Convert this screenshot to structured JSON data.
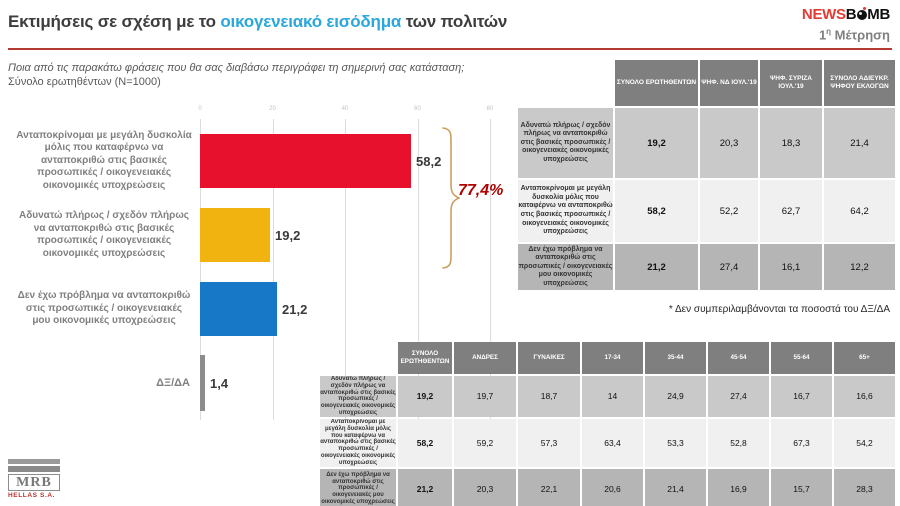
{
  "header": {
    "title_prefix": "Εκτιμήσεις σε σχέση με το ",
    "title_highlight": "οικογενειακό εισόδημα",
    "title_suffix": " των πολιτών",
    "brand_news": "NEWS",
    "brand_b": "B",
    "brand_mb": "MB",
    "measurement_num": "1",
    "measurement_sup": "η",
    "measurement_word": " Μέτρηση"
  },
  "question": {
    "line1": "Ποια από τις παρακάτω φράσεις που θα σας διαβάσω περιγράφει τη σημερινή σας κατάσταση;",
    "line2": "Σύνολο ερωτηθέντων (N=1000)"
  },
  "colors": {
    "accent_rule": "#b23a32",
    "title_highlight": "#2aa7dc",
    "brand_red": "#e23b34",
    "annotation_red": "#b00000",
    "table_header_bg": "#7f7f7f",
    "row_colors": [
      "#c9c9c9",
      "#f0f0f0",
      "#b5b5b5"
    ]
  },
  "chart_data": [
    {
      "type": "bar",
      "orientation": "horizontal",
      "title": "Εκτιμήσεις σε σχέση με το οικογενειακό εισόδημα των πολιτών",
      "xlabel": "",
      "ylabel": "",
      "xlim": [
        0,
        80
      ],
      "x_ticks": [
        0,
        20,
        40,
        60,
        80
      ],
      "grid": true,
      "categories": [
        "Ανταποκρίνομαι με μεγάλη δυσκολία μόλις που καταφέρνω να ανταποκριθώ στις βασικές προσωπικές / οικογενειακές οικονομικές υποχρεώσεις",
        "Αδυνατώ πλήρως / σχεδόν πλήρως να ανταποκριθώ στις βασικές προσωπικές / οικογενειακές οικονομικές υποχρεώσεις",
        "Δεν έχω πρόβλημα να ανταποκριθώ στις προσωπικές / οικογενειακές μου οικονομικές υποχρεώσεις",
        "ΔΞ/ΔΑ"
      ],
      "values": [
        58.2,
        19.2,
        21.2,
        1.4
      ],
      "value_labels": [
        "58,2",
        "19,2",
        "21,2",
        "1,4"
      ],
      "bar_colors": [
        "#e8112d",
        "#f0b310",
        "#1878c8",
        "#8c8c8c"
      ],
      "annotation": {
        "label": "77,4%",
        "value": 77.4,
        "covers": [
          58.2,
          19.2
        ],
        "color": "#b00000"
      }
    },
    {
      "type": "table",
      "name": "vote_breakdown",
      "headers": [
        "",
        "ΣΥΝΟΛΟ ΕΡΩΤΗΘΕΝΤΩΝ",
        "ΨΗΦ. ΝΔ ΙΟΥΛ.'19",
        "ΨΗΦ. ΣΥΡΙΖΑ ΙΟΥΛ.'19",
        "ΣΥΝΟΛΟ ΑΔΙΕΥΚΡ. ΨΗΦΟΥ ΕΚΛΟΓΩΝ"
      ],
      "rows": [
        {
          "label": "Αδυνατώ πλήρως / σχεδόν πλήρως να ανταποκριθώ στις βασικές προσωπικές / οικογενειακές οικονομικές υποχρεώσεις",
          "values": [
            "19,2",
            "20,3",
            "18,3",
            "21,4"
          ]
        },
        {
          "label": "Ανταποκρίνομαι με μεγάλη δυσκολία μόλις που καταφέρνω να ανταποκριθώ στις βασικές προσωπικές / οικογενειακές οικονομικές υποχρεώσεις",
          "values": [
            "58,2",
            "52,2",
            "62,7",
            "64,2"
          ]
        },
        {
          "label": "Δεν έχω πρόβλημα να ανταποκριθώ στις προσωπικές / οικογενειακές μου οικονομικές υποχρεώσεις",
          "values": [
            "21,2",
            "27,4",
            "16,1",
            "12,2"
          ]
        }
      ],
      "footnote": "* Δεν συμπεριλαμβάνονται τα ποσοστά του ΔΞ/ΔΑ"
    },
    {
      "type": "table",
      "name": "demographics",
      "headers": [
        "",
        "ΣΥΝΟΛΟ ΕΡΩΤΗΘΕΝΤΩΝ",
        "ΑΝΔΡΕΣ",
        "ΓΥΝΑΙΚΕΣ",
        "17-34",
        "35-44",
        "45-54",
        "55-64",
        "65+"
      ],
      "rows": [
        {
          "label": "Αδυνατώ πλήρως / σχεδόν πλήρως να ανταποκριθώ στις βασικές προσωπικές / οικογενειακές οικονομικές υποχρεώσεις",
          "values": [
            "19,2",
            "19,7",
            "18,7",
            "14",
            "24,9",
            "27,4",
            "16,7",
            "16,6"
          ]
        },
        {
          "label": "Ανταποκρίνομαι με μεγάλη δυσκολία μόλις που καταφέρνω να ανταποκριθώ στις βασικές προσωπικές / οικογενειακές οικονομικές υποχρεώσεις",
          "values": [
            "58,2",
            "59,2",
            "57,3",
            "63,4",
            "53,3",
            "52,8",
            "67,3",
            "54,2"
          ]
        },
        {
          "label": "Δεν έχω πρόβλημα να ανταποκριθώ στις προσωπικές / οικογενειακές μου οικονομικές υποχρεώσεις",
          "values": [
            "21,2",
            "20,3",
            "22,1",
            "20,6",
            "21,4",
            "16,9",
            "15,7",
            "28,3"
          ]
        }
      ]
    }
  ],
  "logo": {
    "mrb": "MRB",
    "mrb_sub": "HELLAS S.A."
  }
}
